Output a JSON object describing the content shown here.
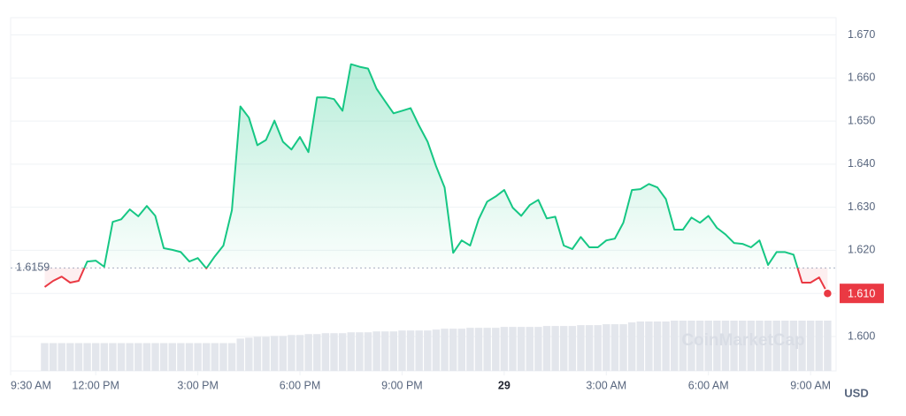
{
  "chart_data": {
    "type": "line",
    "x": [
      10.5,
      10.75,
      11,
      11.25,
      11.5,
      11.75,
      12,
      12.25,
      12.5,
      12.75,
      13,
      13.25,
      13.5,
      13.75,
      14,
      14.25,
      14.5,
      14.75,
      15,
      15.25,
      15.5,
      15.75,
      16,
      16.25,
      16.5,
      16.75,
      17,
      17.25,
      17.5,
      17.75,
      18,
      18.25,
      18.5,
      18.75,
      19,
      19.25,
      19.5,
      19.75,
      20,
      20.25,
      20.5,
      20.75,
      21,
      21.25,
      21.5,
      21.75,
      22,
      22.25,
      22.5,
      22.75,
      23,
      23.25,
      23.5,
      23.75,
      24,
      24.25,
      24.5,
      24.75,
      25,
      25.25,
      25.5,
      25.75,
      26,
      26.25,
      26.5,
      26.75,
      27,
      27.25,
      27.5,
      27.75,
      28,
      28.25,
      28.5,
      28.75,
      29,
      29.25,
      29.5,
      29.75,
      30,
      30.25,
      30.5,
      30.75,
      31,
      31.25,
      31.5,
      31.75,
      32,
      32.25,
      32.5,
      32.75,
      33,
      33.25,
      33.5
    ],
    "values": [
      1.6115,
      1.6129,
      1.6139,
      1.6125,
      1.6129,
      1.6174,
      1.6176,
      1.6162,
      1.6266,
      1.6272,
      1.6295,
      1.6279,
      1.6303,
      1.628,
      1.6205,
      1.6201,
      1.6196,
      1.6174,
      1.6182,
      1.6158,
      1.6186,
      1.6211,
      1.6293,
      1.6534,
      1.6508,
      1.6444,
      1.6456,
      1.6501,
      1.6452,
      1.6434,
      1.6463,
      1.6428,
      1.6555,
      1.6555,
      1.6551,
      1.6524,
      1.6632,
      1.6626,
      1.6622,
      1.6575,
      1.6546,
      1.6518,
      1.6524,
      1.653,
      1.6489,
      1.6452,
      1.6395,
      1.6346,
      1.6194,
      1.6223,
      1.6211,
      1.6272,
      1.6313,
      1.6325,
      1.634,
      1.6299,
      1.628,
      1.6305,
      1.6317,
      1.6274,
      1.6278,
      1.6211,
      1.6203,
      1.6231,
      1.6207,
      1.6207,
      1.6223,
      1.6227,
      1.6264,
      1.634,
      1.6342,
      1.6354,
      1.6346,
      1.6319,
      1.6248,
      1.6248,
      1.6276,
      1.6264,
      1.628,
      1.6252,
      1.6237,
      1.6217,
      1.6215,
      1.6207,
      1.6223,
      1.6166,
      1.6196,
      1.6196,
      1.619,
      1.6125,
      1.6125,
      1.6137,
      1.61
    ],
    "volume": [
      31,
      31,
      31,
      31,
      31,
      31,
      31,
      31,
      31,
      31,
      31,
      31,
      31,
      31,
      31,
      31,
      31,
      31,
      31,
      31,
      31,
      31,
      31,
      36,
      37,
      38,
      38,
      39,
      39,
      40,
      40,
      41,
      41,
      42,
      42,
      42,
      43,
      43,
      43,
      44,
      44,
      44,
      45,
      45,
      45,
      45,
      46,
      47,
      47,
      47,
      48,
      48,
      48,
      48,
      49,
      49,
      49,
      49,
      49,
      50,
      50,
      50,
      50,
      51,
      51,
      51,
      52,
      52,
      52,
      54,
      55,
      55,
      55,
      55,
      56,
      56,
      56,
      56,
      56,
      56,
      56,
      56,
      56,
      56,
      56,
      56,
      56,
      56,
      56,
      56,
      56,
      56,
      56
    ],
    "color_up": "#16c784",
    "color_down": "#ea3943",
    "volume_color": "#e3e6ec",
    "baseline": 1.6159,
    "last_label": "1.610",
    "watermark": "CoinMarketCap",
    "y_axis_label": "USD",
    "xlim": [
      9.5,
      33.75
    ],
    "ylim": [
      1.592,
      1.674
    ],
    "yticks": [
      {
        "value": 1.6,
        "label": "1.600"
      },
      {
        "value": 1.61,
        "label": "1.610"
      },
      {
        "value": 1.62,
        "label": "1.620"
      },
      {
        "value": 1.63,
        "label": "1.630"
      },
      {
        "value": 1.64,
        "label": "1.640"
      },
      {
        "value": 1.65,
        "label": "1.650"
      },
      {
        "value": 1.66,
        "label": "1.660"
      },
      {
        "value": 1.67,
        "label": "1.670"
      }
    ],
    "xticks": [
      {
        "value": 9.5,
        "label": "9:30 AM"
      },
      {
        "value": 12,
        "label": "12:00 PM"
      },
      {
        "value": 15,
        "label": "3:00 PM"
      },
      {
        "value": 18,
        "label": "6:00 PM"
      },
      {
        "value": 21,
        "label": "9:00 PM"
      },
      {
        "value": 24,
        "label": "29"
      },
      {
        "value": 27,
        "label": "3:00 AM"
      },
      {
        "value": 30,
        "label": "6:00 AM"
      },
      {
        "value": 33,
        "label": "9:00 AM"
      }
    ],
    "grid": true
  }
}
